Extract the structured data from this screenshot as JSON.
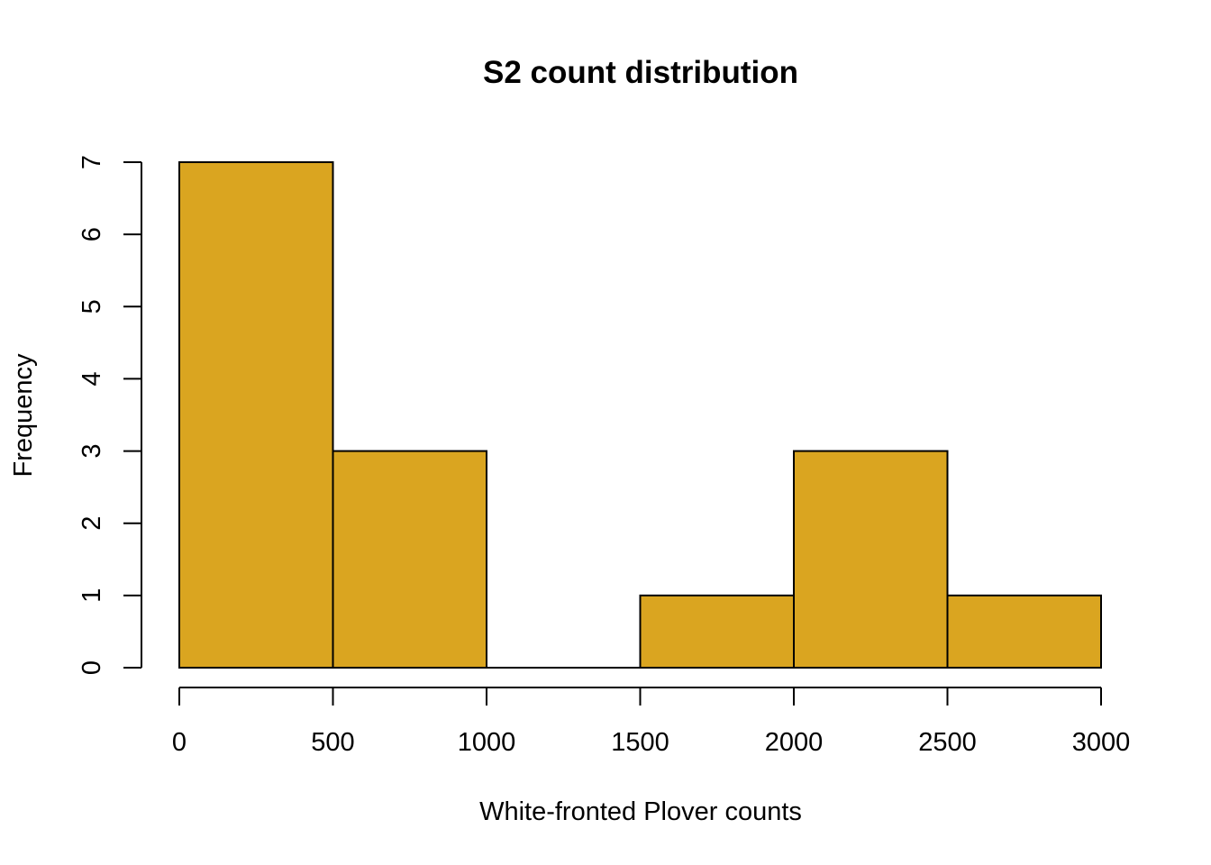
{
  "chart_data": {
    "type": "bar",
    "subtype": "histogram",
    "title": "S2 count distribution",
    "xlabel": "White-fronted Plover counts",
    "ylabel": "Frequency",
    "bins": [
      {
        "start": 0,
        "end": 500,
        "count": 7
      },
      {
        "start": 500,
        "end": 1000,
        "count": 3
      },
      {
        "start": 1000,
        "end": 1500,
        "count": 0
      },
      {
        "start": 1500,
        "end": 2000,
        "count": 1
      },
      {
        "start": 2000,
        "end": 2500,
        "count": 3
      },
      {
        "start": 2500,
        "end": 3000,
        "count": 1
      }
    ],
    "xlim": [
      0,
      3000
    ],
    "ylim": [
      0,
      7
    ],
    "x_ticks": [
      "0",
      "500",
      "1000",
      "1500",
      "2000",
      "2500",
      "3000"
    ],
    "y_ticks": [
      "0",
      "1",
      "2",
      "3",
      "4",
      "5",
      "6",
      "7"
    ],
    "grid": false,
    "legend": "none",
    "bar_color": "#DAA520",
    "edge_color": "#000000"
  }
}
